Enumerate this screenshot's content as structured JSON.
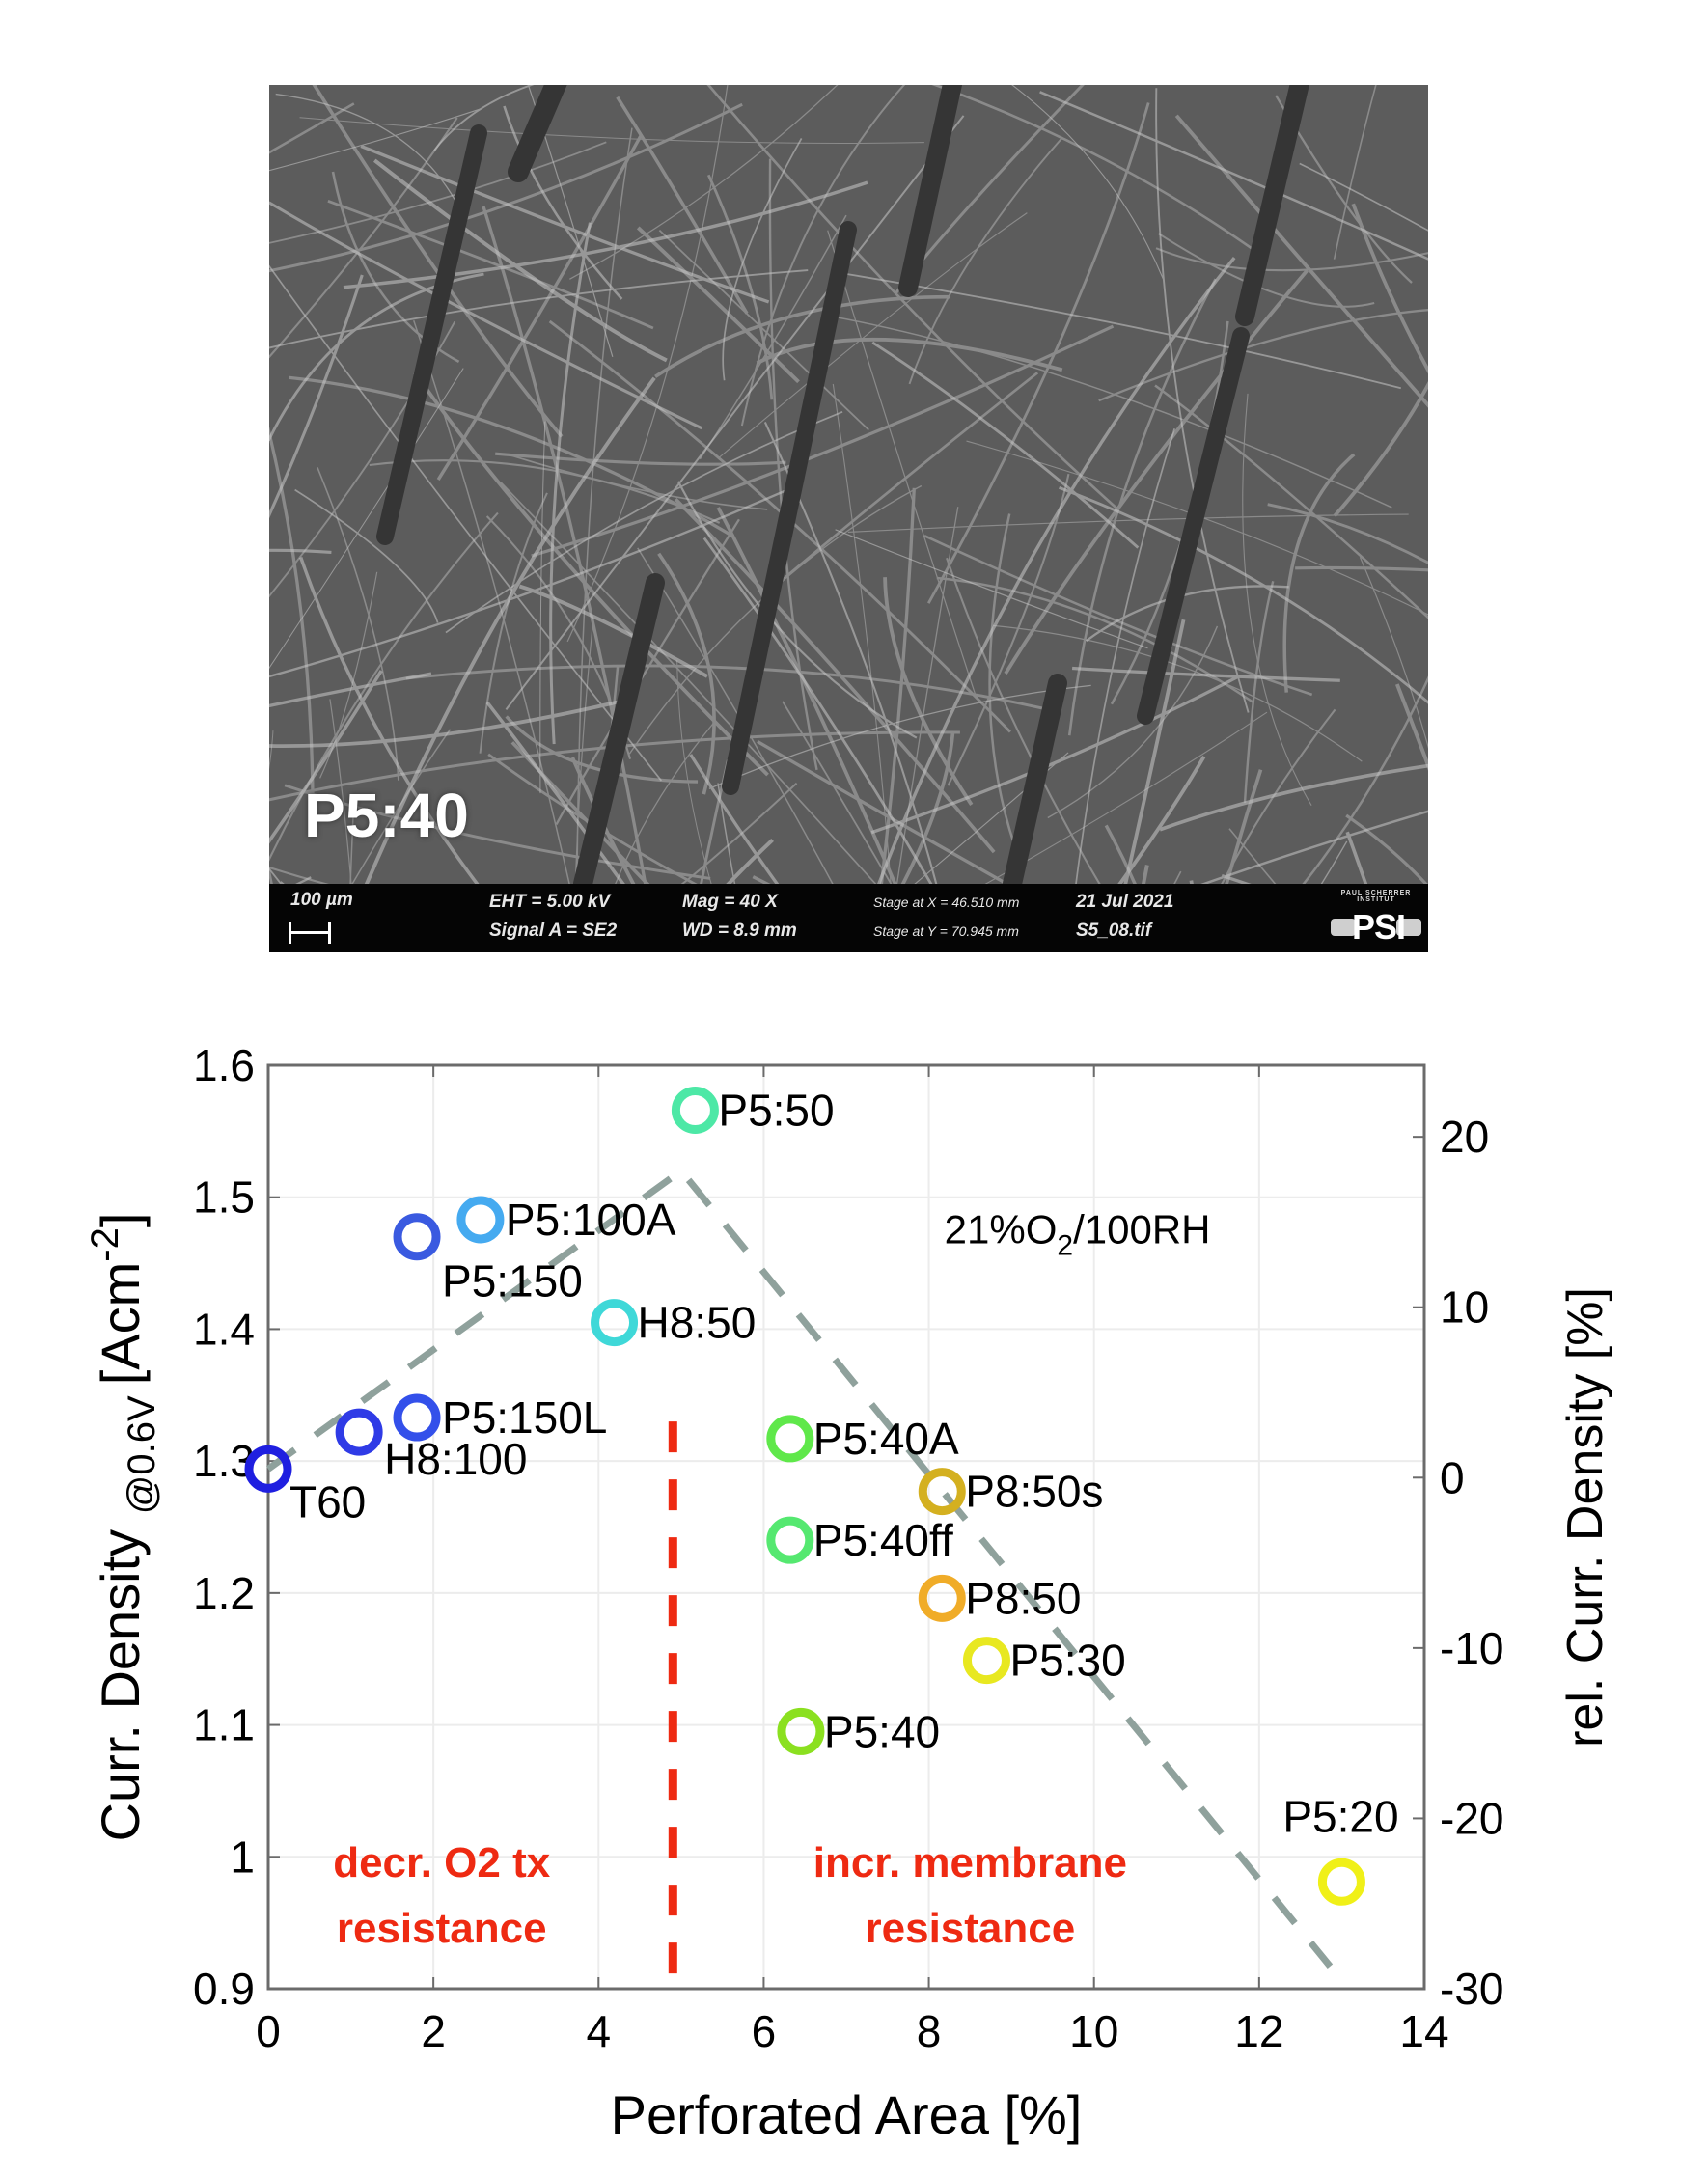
{
  "sem_image": {
    "sample_label": "P5:40",
    "scale_bar_label": "100 µm",
    "eht": "EHT =  5.00 kV",
    "signal": "Signal A = SE2",
    "mag": "Mag =    40 X",
    "wd": "WD =  8.9 mm",
    "stage_x": "Stage at X = 46.510 mm",
    "stage_y": "Stage at Y = 70.945 mm",
    "date": "21 Jul 2021",
    "filename": "S5_08.tif",
    "institute": "PAUL SCHERRER INSTITUT",
    "logo": "PSI"
  },
  "chart_data": {
    "type": "scatter",
    "title": "",
    "xlabel": "Perforated Area [%]",
    "ylabel": "Curr. Density@0.6V [Acm-2]",
    "ylabel_main": "Curr. Density",
    "ylabel_sub": "@0.6V",
    "ylabel_unit": "[Acm",
    "ylabel_unit_sup": "-2",
    "ylabel_unit_end": "]",
    "y2label": "rel. Curr. Density [%]",
    "xlim": [
      0,
      14
    ],
    "ylim": [
      0.9,
      1.6
    ],
    "y2lim": [
      -30,
      24.2
    ],
    "xticks": [
      "0",
      "2",
      "4",
      "6",
      "8",
      "10",
      "12",
      "14"
    ],
    "yticks": [
      "0.9",
      "1",
      "1.1",
      "1.2",
      "1.3",
      "1.4",
      "1.5",
      "1.6"
    ],
    "y2ticks": [
      "-30",
      "-20",
      "-10",
      "0",
      "10",
      "20"
    ],
    "grid": true,
    "legend": null,
    "points": [
      {
        "label": "T60",
        "x": 0.0,
        "y": 1.294,
        "color": "#1f1fe0"
      },
      {
        "label": "H8:100",
        "x": 1.1,
        "y": 1.322,
        "color": "#2f3be6"
      },
      {
        "label": "P5:150L",
        "x": 1.8,
        "y": 1.333,
        "color": "#3350ea"
      },
      {
        "label": "P5:150",
        "x": 1.8,
        "y": 1.47,
        "color": "#3a5ae0"
      },
      {
        "label": "P5:100A",
        "x": 2.57,
        "y": 1.483,
        "color": "#45aaf0"
      },
      {
        "label": "H8:50",
        "x": 4.19,
        "y": 1.405,
        "color": "#3fd8d8"
      },
      {
        "label": "P5:50",
        "x": 5.17,
        "y": 1.566,
        "color": "#4de8a6"
      },
      {
        "label": "P5:40A",
        "x": 6.32,
        "y": 1.317,
        "color": "#5fe84a"
      },
      {
        "label": "P5:40ff",
        "x": 6.32,
        "y": 1.24,
        "color": "#55e870"
      },
      {
        "label": "P5:40",
        "x": 6.45,
        "y": 1.095,
        "color": "#8be020"
      },
      {
        "label": "P8:50s",
        "x": 8.16,
        "y": 1.277,
        "color": "#d4b020"
      },
      {
        "label": "P8:50",
        "x": 8.16,
        "y": 1.196,
        "color": "#f0ac28"
      },
      {
        "label": "P5:30",
        "x": 8.7,
        "y": 1.149,
        "color": "#e8e820"
      },
      {
        "label": "P5:20",
        "x": 13.0,
        "y": 0.981,
        "color": "#f0f018"
      }
    ],
    "trend_line": {
      "style": "dashed",
      "color": "#8fa19c",
      "points": [
        [
          0.0,
          1.294
        ],
        [
          5.0,
          1.52
        ],
        [
          12.86,
          0.917
        ]
      ]
    },
    "divider_line": {
      "style": "dashed",
      "color": "#ee2a12",
      "x": 4.9,
      "y_range": [
        0.9,
        1.33
      ]
    },
    "annotations": [
      {
        "text": "21%O2/100RH",
        "main": "21%O",
        "sub": "2",
        "end": "/100RH",
        "x": 9.8,
        "y": 1.465,
        "color": "#000000"
      },
      {
        "text": "decr. O2 tx",
        "x": 2.1,
        "y": 0.985,
        "color": "#ee2a12"
      },
      {
        "text": "resistance",
        "x": 2.1,
        "y": 0.935,
        "color": "#ee2a12"
      },
      {
        "text": "incr. membrane",
        "x": 8.5,
        "y": 0.985,
        "color": "#ee2a12"
      },
      {
        "text": "resistance",
        "x": 8.5,
        "y": 0.935,
        "color": "#ee2a12"
      }
    ]
  }
}
